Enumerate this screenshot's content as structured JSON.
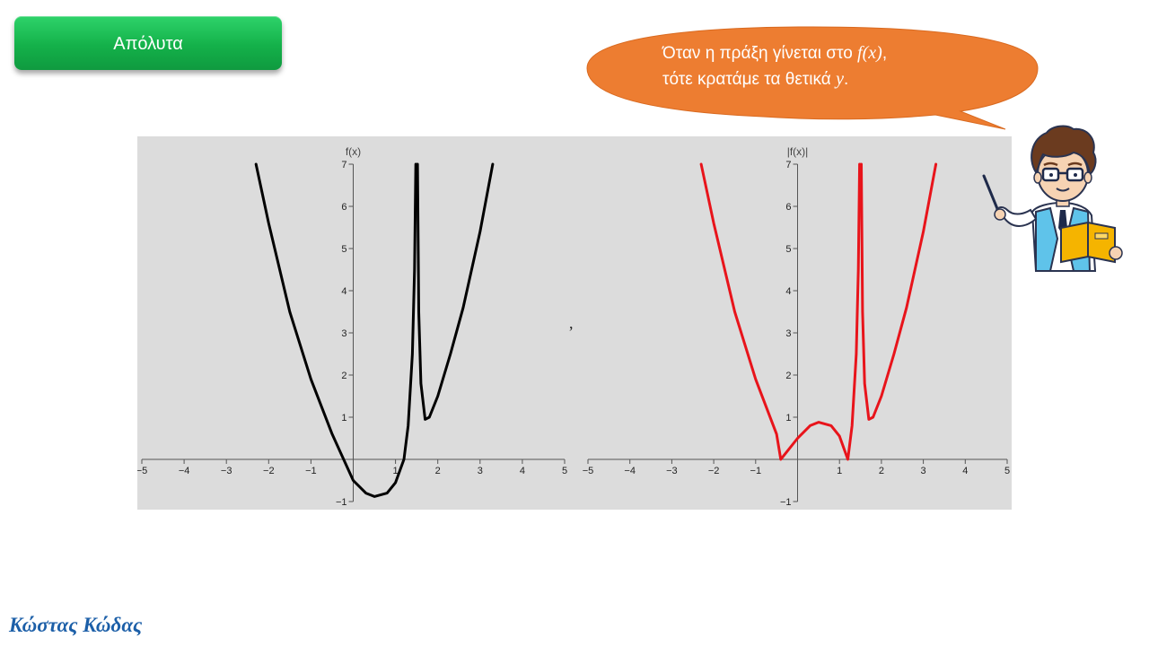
{
  "slide": {
    "title_button": "Απόλυτα",
    "separator_mark": ",",
    "author": "Κώστας Κώδας"
  },
  "speech_bubble": {
    "line1_text": "Όταν η πράξη γίνεται στο ",
    "line1_math": "f(x)",
    "line1_end": ",",
    "line2_text": "τότε κρατάμε τα θετικά ",
    "line2_math": "y",
    "line2_end": ".",
    "fill_color": "#ed7d31"
  },
  "icons": {
    "teacher": "teacher-with-book-and-pointer-icon"
  },
  "chart_data": [
    {
      "type": "line",
      "function": "f",
      "ylabel": "f(x)",
      "xlim": [
        -5,
        5
      ],
      "ylim": [
        -1,
        7
      ],
      "x_ticks": [
        -5,
        -4,
        -3,
        -2,
        -1,
        1,
        2,
        3,
        4,
        5
      ],
      "y_ticks": [
        -1,
        1,
        2,
        3,
        4,
        5,
        6,
        7
      ],
      "grid": false,
      "color": "#000000",
      "series": [
        {
          "x": [
            -2.3,
            -2.0,
            -1.5,
            -1.0,
            -0.5,
            0.0,
            0.3,
            0.5,
            0.8,
            1.0,
            1.2,
            1.3,
            1.4,
            1.45,
            1.48
          ],
          "y": [
            7.0,
            5.6,
            3.5,
            1.9,
            0.6,
            -0.5,
            -0.8,
            -0.88,
            -0.8,
            -0.55,
            0.0,
            0.8,
            2.5,
            4.5,
            7.0
          ]
        },
        {
          "x": [
            1.52,
            1.55,
            1.6,
            1.7,
            1.8,
            2.0,
            2.3,
            2.6,
            3.0,
            3.3
          ],
          "y": [
            7.0,
            3.5,
            1.8,
            0.95,
            1.0,
            1.5,
            2.5,
            3.6,
            5.4,
            7.0
          ]
        }
      ]
    },
    {
      "type": "line",
      "function": "|f|",
      "ylabel": "|f(x)|",
      "xlim": [
        -5,
        5
      ],
      "ylim": [
        -1,
        7
      ],
      "x_ticks": [
        -5,
        -4,
        -3,
        -2,
        -1,
        1,
        2,
        3,
        4,
        5
      ],
      "y_ticks": [
        -1,
        1,
        2,
        3,
        4,
        5,
        6,
        7
      ],
      "grid": false,
      "color": "#e8141b",
      "series": [
        {
          "x": [
            -2.3,
            -2.0,
            -1.5,
            -1.0,
            -0.5,
            -0.4,
            0.0,
            0.3,
            0.5,
            0.8,
            1.0,
            1.2,
            1.3,
            1.4,
            1.45,
            1.48
          ],
          "y": [
            7.0,
            5.6,
            3.5,
            1.9,
            0.6,
            0.0,
            0.5,
            0.8,
            0.88,
            0.8,
            0.55,
            0.0,
            0.8,
            2.5,
            4.5,
            7.0
          ]
        },
        {
          "x": [
            1.52,
            1.55,
            1.6,
            1.7,
            1.8,
            2.0,
            2.3,
            2.6,
            3.0,
            3.3
          ],
          "y": [
            7.0,
            3.5,
            1.8,
            0.95,
            1.0,
            1.5,
            2.5,
            3.6,
            5.4,
            7.0
          ]
        }
      ]
    }
  ]
}
